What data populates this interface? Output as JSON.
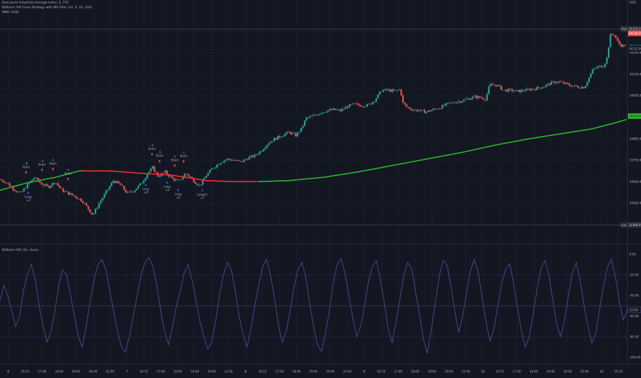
{
  "legend": {
    "symbol_line": "Dow Jones Industrial Average Index, 5, TVC",
    "strategy_line": "Williams %R Cross Strategy with MA Filter (14, 0, 10, 110)",
    "ma_line": "MMA (200)"
  },
  "currency": "USD",
  "price_axis": {
    "ticks": [
      "34300.00",
      "34200.00",
      "34100.00",
      "34000.00",
      "33900.00",
      "33800.00",
      "33700.00",
      "33600.00",
      "33500.00"
    ],
    "high_label": "High",
    "high_value": "34310.28",
    "last_value": "34236.00",
    "last_value_2": "34218.00",
    "last_value_3": "34212.00",
    "ma_value": "33920.00",
    "low_label": "Low",
    "low_value": "33398.69"
  },
  "oscillator": {
    "title": "Williams %R (14, close)",
    "ticks": [
      "0.00",
      "-20.00",
      "-40.00",
      "-60.00",
      "-80.00",
      "-100.00"
    ],
    "current_value": "-53.90"
  },
  "time_axis": {
    "labels": [
      "6",
      "16:15",
      "17:00",
      "18:00",
      "19:00",
      "20:00",
      "21:00",
      "7",
      "16:15",
      "17:00",
      "18:00",
      "19:00",
      "20:00",
      "21:00",
      "8",
      "16:15",
      "17:00",
      "18:00",
      "19:00",
      "20:00",
      "21:00",
      "9",
      "16:15",
      "17:00",
      "18:00",
      "19:00",
      "20:00",
      "21:00",
      "12",
      "16:15",
      "17:00",
      "18:00",
      "19:00",
      "20:00",
      "21:00",
      "13",
      "16:15"
    ]
  },
  "signals": [
    {
      "type": "short",
      "label": "Short",
      "qty": "-8",
      "x": 38
    },
    {
      "type": "long",
      "label": "Long",
      "qty": "+4",
      "x": 41
    },
    {
      "type": "short",
      "label": "Short",
      "qty": "-4",
      "x": 61
    },
    {
      "type": "short",
      "label": "Short",
      "qty": "-1",
      "x": 77
    },
    {
      "type": "short",
      "label": "Short",
      "qty": "-1",
      "x": 99
    },
    {
      "type": "short",
      "label": "Short",
      "qty": "-4",
      "x": 221
    },
    {
      "type": "long",
      "label": "Long",
      "qty": "+8",
      "x": 212
    },
    {
      "type": "short",
      "label": "Short",
      "qty": "-5",
      "x": 232
    },
    {
      "type": "long",
      "label": "Long",
      "qty": "+8",
      "x": 243
    },
    {
      "type": "short",
      "label": "Short",
      "qty": "-1",
      "x": 254
    },
    {
      "type": "long",
      "label": "Long",
      "qty": "+4",
      "x": 259
    },
    {
      "type": "short",
      "label": "Short",
      "qty": "-1",
      "x": 267
    },
    {
      "type": "long",
      "label": "Long(1)",
      "qty": "+7",
      "x": 294
    }
  ],
  "colors": {
    "background": "#131722",
    "up": "#26a69a",
    "down": "#ef5350",
    "ma_above": "#2eb82e",
    "ma_below": "#ff2b2b",
    "wr_line": "#5a4fa8",
    "grid": "#1f2330",
    "text": "#b2b5be"
  },
  "chart_data": [
    {
      "type": "candlestick",
      "title": "Dow Jones Industrial Average Index, 5, TVC",
      "ylim": [
        33390,
        34330
      ],
      "high": 34310.28,
      "low": 33398.69,
      "price_path": [
        [
          0,
          33610
        ],
        [
          10,
          33595
        ],
        [
          20,
          33565
        ],
        [
          30,
          33545
        ],
        [
          40,
          33585
        ],
        [
          50,
          33620
        ],
        [
          60,
          33590
        ],
        [
          70,
          33575
        ],
        [
          80,
          33600
        ],
        [
          90,
          33560
        ],
        [
          100,
          33545
        ],
        [
          110,
          33530
        ],
        [
          120,
          33510
        ],
        [
          128,
          33475
        ],
        [
          135,
          33445
        ],
        [
          145,
          33505
        ],
        [
          155,
          33555
        ],
        [
          165,
          33605
        ],
        [
          175,
          33585
        ],
        [
          185,
          33545
        ],
        [
          195,
          33560
        ],
        [
          205,
          33590
        ],
        [
          215,
          33640
        ],
        [
          222,
          33665
        ],
        [
          230,
          33625
        ],
        [
          240,
          33645
        ],
        [
          250,
          33615
        ],
        [
          260,
          33600
        ],
        [
          270,
          33640
        ],
        [
          280,
          33610
        ],
        [
          290,
          33580
        ],
        [
          300,
          33630
        ],
        [
          310,
          33665
        ],
        [
          320,
          33690
        ],
        [
          330,
          33705
        ],
        [
          340,
          33700
        ],
        [
          350,
          33690
        ],
        [
          360,
          33710
        ],
        [
          370,
          33720
        ],
        [
          380,
          33745
        ],
        [
          390,
          33780
        ],
        [
          400,
          33800
        ],
        [
          410,
          33815
        ],
        [
          420,
          33830
        ],
        [
          430,
          33815
        ],
        [
          438,
          33845
        ],
        [
          445,
          33895
        ],
        [
          455,
          33905
        ],
        [
          465,
          33920
        ],
        [
          475,
          33930
        ],
        [
          485,
          33935
        ],
        [
          495,
          33930
        ],
        [
          505,
          33950
        ],
        [
          515,
          33960
        ],
        [
          525,
          33955
        ],
        [
          535,
          33955
        ],
        [
          545,
          33980
        ],
        [
          555,
          34025
        ],
        [
          565,
          34025
        ],
        [
          575,
          34020
        ],
        [
          582,
          34030
        ],
        [
          586,
          33965
        ],
        [
          592,
          33945
        ],
        [
          600,
          33935
        ],
        [
          610,
          33930
        ],
        [
          620,
          33925
        ],
        [
          630,
          33935
        ],
        [
          640,
          33945
        ],
        [
          650,
          33960
        ],
        [
          660,
          33970
        ],
        [
          670,
          33975
        ],
        [
          680,
          33985
        ],
        [
          690,
          33995
        ],
        [
          700,
          33990
        ],
        [
          706,
          33985
        ],
        [
          712,
          34050
        ],
        [
          722,
          34050
        ],
        [
          732,
          34025
        ],
        [
          742,
          34025
        ],
        [
          752,
          34020
        ],
        [
          762,
          34025
        ],
        [
          772,
          34030
        ],
        [
          782,
          34035
        ],
        [
          792,
          34045
        ],
        [
          802,
          34060
        ],
        [
          812,
          34065
        ],
        [
          822,
          34055
        ],
        [
          832,
          34045
        ],
        [
          842,
          34040
        ],
        [
          850,
          34040
        ],
        [
          855,
          34075
        ],
        [
          862,
          34120
        ],
        [
          870,
          34135
        ],
        [
          878,
          34140
        ],
        [
          883,
          34180
        ],
        [
          887,
          34280
        ],
        [
          893,
          34285
        ],
        [
          899,
          34245
        ],
        [
          905,
          34230
        ],
        [
          912,
          34240
        ]
      ],
      "ma_path": [
        [
          0,
          33560
        ],
        [
          40,
          33595
        ],
        [
          80,
          33620
        ],
        [
          115,
          33650
        ],
        [
          160,
          33650
        ],
        [
          200,
          33640
        ],
        [
          250,
          33630
        ],
        [
          300,
          33605
        ],
        [
          340,
          33600
        ],
        [
          375,
          33600
        ],
        [
          420,
          33605
        ],
        [
          470,
          33620
        ],
        [
          520,
          33645
        ],
        [
          570,
          33675
        ],
        [
          620,
          33705
        ],
        [
          670,
          33735
        ],
        [
          720,
          33770
        ],
        [
          770,
          33800
        ],
        [
          820,
          33825
        ],
        [
          860,
          33845
        ],
        [
          890,
          33870
        ],
        [
          912,
          33890
        ]
      ],
      "ma_red_range": [
        120,
        375
      ]
    },
    {
      "type": "line",
      "title": "Williams %R (14, close)",
      "ylim": [
        -100,
        0
      ],
      "reference_lines": [
        -20,
        -50,
        -80
      ],
      "values": [
        -45,
        -30,
        -40,
        -55,
        -70,
        -60,
        -35,
        -20,
        -10,
        -25,
        -50,
        -70,
        -85,
        -75,
        -55,
        -30,
        -15,
        -20,
        -40,
        -60,
        -80,
        -90,
        -70,
        -45,
        -25,
        -10,
        -5,
        -15,
        -35,
        -55,
        -75,
        -90,
        -95,
        -80,
        -60,
        -40,
        -20,
        -8,
        -3,
        -12,
        -30,
        -55,
        -75,
        -88,
        -70,
        -50,
        -35,
        -18,
        -10,
        -25,
        -45,
        -65,
        -80,
        -92,
        -85,
        -65,
        -40,
        -20,
        -8,
        -15,
        -35,
        -60,
        -78,
        -90,
        -72,
        -50,
        -30,
        -12,
        -5,
        -20,
        -42,
        -68,
        -85,
        -75,
        -55,
        -32,
        -15,
        -8,
        -22,
        -48,
        -70,
        -88,
        -94,
        -78,
        -55,
        -28,
        -10,
        -4,
        -18,
        -40,
        -62,
        -80,
        -70,
        -50,
        -26,
        -12,
        -6,
        -24,
        -46,
        -72,
        -86,
        -66,
        -44,
        -20,
        -8,
        -14,
        -36,
        -58,
        -82,
        -96,
        -74,
        -48,
        -22,
        -6,
        -10,
        -30,
        -55,
        -76,
        -60,
        -38,
        -16,
        -5,
        -18,
        -42,
        -66,
        -84,
        -72,
        -50,
        -28,
        -14,
        -9,
        -28,
        -52,
        -74,
        -90,
        -80,
        -58,
        -34,
        -14,
        -6,
        -20,
        -44,
        -68,
        -80,
        -64,
        -40,
        -18,
        -8,
        -26,
        -50,
        -70,
        -86,
        -76,
        -52,
        -30,
        -12,
        -5,
        -22,
        -46,
        -64,
        -54
      ]
    }
  ]
}
